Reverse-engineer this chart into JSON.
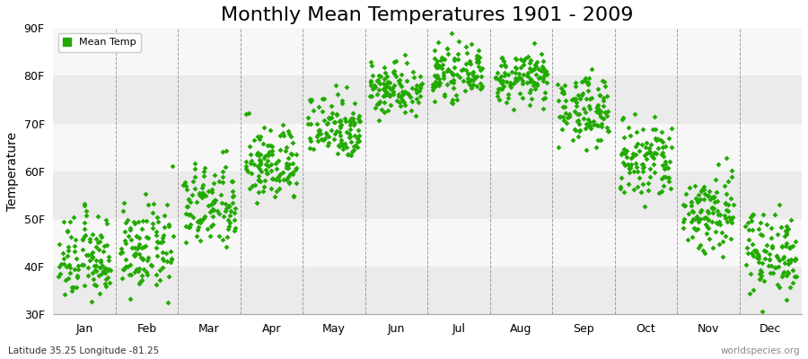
{
  "title": "Monthly Mean Temperatures 1901 - 2009",
  "ylabel": "Temperature",
  "bottom_left_label": "Latitude 35.25 Longitude -81.25",
  "bottom_right_label": "worldspecies.org",
  "legend_label": "Mean Temp",
  "dot_color": "#22aa00",
  "bg_color": "#ffffff",
  "ylim": [
    30,
    90
  ],
  "yticks": [
    30,
    40,
    50,
    60,
    70,
    80,
    90
  ],
  "ytick_labels": [
    "30F",
    "40F",
    "50F",
    "60F",
    "70F",
    "80F",
    "90F"
  ],
  "month_names": [
    "Jan",
    "Feb",
    "Mar",
    "Apr",
    "May",
    "Jun",
    "Jul",
    "Aug",
    "Sep",
    "Oct",
    "Nov",
    "Dec"
  ],
  "monthly_means": [
    41.5,
    43.5,
    52.5,
    61.5,
    69.5,
    77.5,
    80.5,
    79.5,
    73.0,
    62.0,
    51.5,
    43.0
  ],
  "monthly_stds": [
    4.5,
    4.5,
    4.5,
    4.0,
    3.5,
    2.8,
    2.5,
    2.5,
    3.5,
    4.5,
    4.5,
    4.5
  ],
  "n_years": 109,
  "title_fontsize": 16,
  "label_fontsize": 10,
  "tick_fontsize": 9,
  "marker_size": 3,
  "band_colors": [
    "#ebebeb",
    "#f7f7f7"
  ]
}
